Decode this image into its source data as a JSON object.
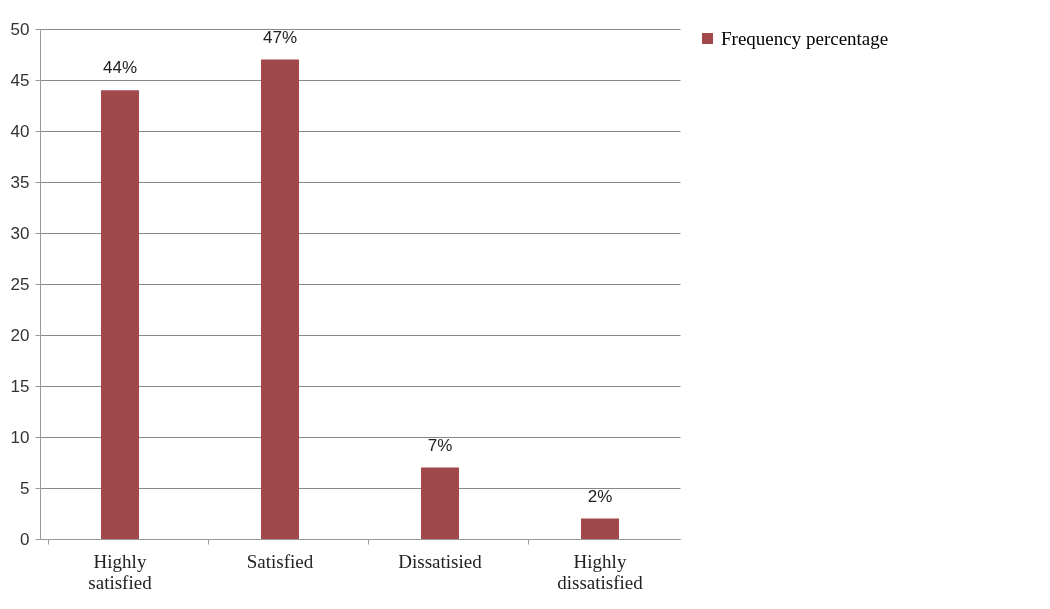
{
  "chart_data": {
    "type": "bar",
    "categories": [
      "Highly satisfied",
      "Satisfied",
      "Dissatisied",
      "Highly dissatisfied"
    ],
    "series": [
      {
        "name": "Frequency percentage",
        "color": "#a0484a",
        "values": [
          44,
          47,
          7,
          2
        ],
        "value_labels": [
          "44%",
          "47%",
          "7%",
          "2%"
        ]
      }
    ],
    "ylim": [
      0,
      50
    ],
    "yticks": [
      0,
      5,
      10,
      15,
      20,
      25,
      30,
      35,
      40,
      45,
      50
    ],
    "grid": "y",
    "legend": "right"
  }
}
